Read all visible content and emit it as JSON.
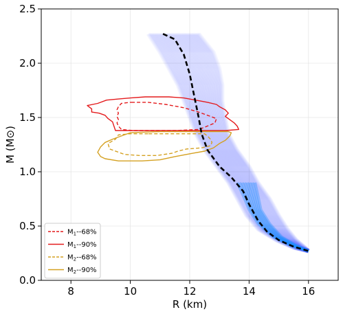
{
  "chart_data": {
    "type": "line",
    "xlabel": "R (km)",
    "ylabel": "M (M⊙)",
    "xlim": [
      7,
      17
    ],
    "ylim": [
      0,
      2.5
    ],
    "xticks": [
      8,
      10,
      12,
      14,
      16
    ],
    "yticks": [
      0.0,
      0.5,
      1.0,
      1.5,
      2.0,
      2.5
    ],
    "xtick_labels": [
      "8",
      "10",
      "12",
      "14",
      "16"
    ],
    "ytick_labels": [
      "0.0",
      "0.5",
      "1.0",
      "1.5",
      "2.0",
      "2.5"
    ],
    "grid": true,
    "legend_position": "lower-left",
    "series": [
      {
        "kind": "median-curve",
        "color": "#000000",
        "style": "dashed",
        "x": [
          11.1,
          11.5,
          11.8,
          12.0,
          12.15,
          12.3,
          12.4,
          12.6,
          13.0,
          13.4,
          13.8,
          14.0,
          14.3,
          14.6,
          15.0,
          15.5,
          16.0
        ],
        "y": [
          2.27,
          2.22,
          2.08,
          1.9,
          1.7,
          1.5,
          1.35,
          1.2,
          1.05,
          0.95,
          0.82,
          0.7,
          0.55,
          0.45,
          0.37,
          0.31,
          0.27
        ]
      },
      {
        "name": "M1--68%",
        "kind": "contour",
        "color": "#e41a1c",
        "style": "dashed",
        "x": [
          10.1,
          10.0,
          9.7,
          9.6,
          9.55,
          9.6,
          9.55,
          9.6,
          9.55,
          9.6,
          9.7,
          10.1,
          10.7,
          11.5,
          12.3,
          12.5,
          12.85,
          12.9,
          12.6,
          12.3,
          11.8,
          11.2,
          10.6,
          10.1
        ],
        "y": [
          1.64,
          1.64,
          1.63,
          1.6,
          1.57,
          1.54,
          1.51,
          1.48,
          1.45,
          1.42,
          1.39,
          1.38,
          1.38,
          1.38,
          1.39,
          1.41,
          1.45,
          1.49,
          1.52,
          1.55,
          1.59,
          1.62,
          1.64,
          1.64
        ]
      },
      {
        "name": "M1--90%",
        "kind": "contour",
        "color": "#e41a1c",
        "style": "solid",
        "x": [
          10.5,
          10.0,
          9.6,
          9.2,
          8.9,
          8.55,
          8.7,
          8.7,
          8.95,
          9.15,
          9.25,
          9.4,
          9.45,
          9.5,
          10.4,
          11.5,
          12.5,
          13.2,
          13.65,
          13.6,
          13.5,
          13.35,
          13.2,
          13.3,
          13.2,
          13.0,
          12.9,
          12.6,
          12.2,
          11.8,
          11.3,
          10.9,
          10.5
        ],
        "y": [
          1.69,
          1.68,
          1.67,
          1.66,
          1.63,
          1.61,
          1.58,
          1.55,
          1.54,
          1.52,
          1.49,
          1.46,
          1.42,
          1.38,
          1.38,
          1.38,
          1.38,
          1.38,
          1.39,
          1.42,
          1.45,
          1.48,
          1.51,
          1.54,
          1.57,
          1.6,
          1.62,
          1.64,
          1.66,
          1.68,
          1.69,
          1.69,
          1.69
        ]
      },
      {
        "name": "M2--68%",
        "kind": "contour",
        "color": "#d4a020",
        "style": "dashed",
        "x": [
          10.6,
          10.0,
          9.6,
          9.5,
          9.25,
          9.3,
          9.8,
          10.3,
          10.9,
          11.4,
          11.6,
          11.9,
          12.4,
          12.7,
          12.75,
          12.7,
          12.6,
          12.5,
          12.0,
          11.4,
          10.6
        ],
        "y": [
          1.35,
          1.35,
          1.34,
          1.3,
          1.26,
          1.21,
          1.16,
          1.15,
          1.15,
          1.17,
          1.19,
          1.21,
          1.22,
          1.24,
          1.27,
          1.3,
          1.33,
          1.35,
          1.35,
          1.35,
          1.35
        ]
      },
      {
        "name": "M2--90%",
        "kind": "contour",
        "color": "#d4a020",
        "style": "solid",
        "x": [
          10.0,
          9.7,
          9.4,
          9.15,
          9.0,
          8.9,
          9.0,
          9.15,
          9.6,
          10.4,
          11.0,
          11.5,
          12.1,
          12.5,
          12.8,
          13.0,
          13.2,
          13.35,
          13.4,
          13.3,
          13.0,
          12.5,
          11.8,
          11.0,
          10.0
        ],
        "y": [
          1.36,
          1.33,
          1.3,
          1.27,
          1.23,
          1.18,
          1.14,
          1.12,
          1.1,
          1.1,
          1.11,
          1.14,
          1.17,
          1.19,
          1.22,
          1.26,
          1.29,
          1.33,
          1.36,
          1.37,
          1.37,
          1.37,
          1.37,
          1.37,
          1.36
        ]
      }
    ],
    "posterior_band": {
      "kind": "band",
      "color": "#3b46ff",
      "left_x": [
        10.6,
        11.0,
        11.3,
        11.6,
        11.8,
        12.0,
        12.2,
        12.5,
        12.9,
        13.3,
        13.6,
        13.9,
        14.3,
        14.9,
        15.5,
        16.0
      ],
      "right_x": [
        12.3,
        12.8,
        13.0,
        13.1,
        13.1,
        13.2,
        13.3,
        13.6,
        14.0,
        14.3,
        14.7,
        15.0,
        15.3,
        15.6,
        15.9,
        16.0
      ],
      "y": [
        2.27,
        2.1,
        1.95,
        1.8,
        1.65,
        1.5,
        1.35,
        1.2,
        1.05,
        0.9,
        0.75,
        0.6,
        0.47,
        0.37,
        0.3,
        0.27
      ]
    },
    "posterior_core": {
      "kind": "band",
      "color": "#1e90ff",
      "left_x": [
        13.6,
        13.8,
        14.0,
        14.3,
        14.8,
        15.4,
        16.0
      ],
      "right_x": [
        14.2,
        14.3,
        14.4,
        14.7,
        15.1,
        15.6,
        16.0
      ],
      "y": [
        0.9,
        0.78,
        0.65,
        0.52,
        0.4,
        0.32,
        0.27
      ]
    }
  },
  "legend": {
    "items": [
      {
        "base": "M",
        "sub": "1",
        "suffix": "--68%",
        "color": "#e41a1c",
        "dash": true
      },
      {
        "base": "M",
        "sub": "1",
        "suffix": "--90%",
        "color": "#e41a1c",
        "dash": false
      },
      {
        "base": "M",
        "sub": "2",
        "suffix": "--68%",
        "color": "#d4a020",
        "dash": true
      },
      {
        "base": "M",
        "sub": "2",
        "suffix": "--90%",
        "color": "#d4a020",
        "dash": false
      }
    ]
  }
}
